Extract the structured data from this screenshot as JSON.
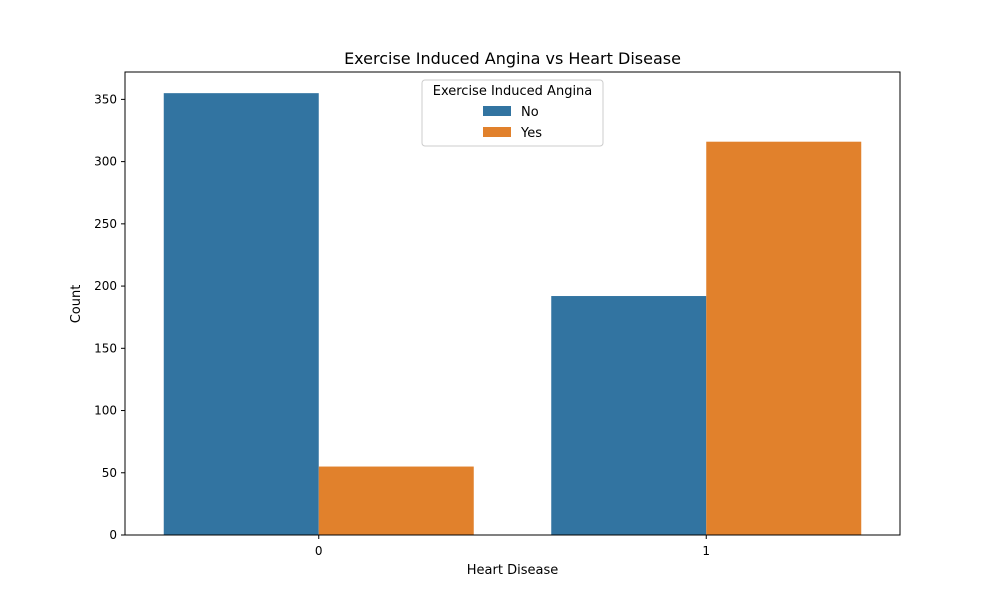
{
  "chart_data": {
    "type": "bar",
    "title": "Exercise Induced Angina vs Heart Disease",
    "xlabel": "Heart Disease",
    "ylabel": "Count",
    "categories": [
      "0",
      "1"
    ],
    "series": [
      {
        "name": "No",
        "values": [
          355,
          192
        ],
        "color": "#3274a1"
      },
      {
        "name": "Yes",
        "values": [
          55,
          316
        ],
        "color": "#e1812c"
      }
    ],
    "ylim": [
      0,
      372
    ],
    "yticks": [
      0,
      50,
      100,
      150,
      200,
      250,
      300,
      350
    ],
    "legend": {
      "title": "Exercise Induced Angina",
      "placement": "top-center"
    },
    "grid": false
  }
}
